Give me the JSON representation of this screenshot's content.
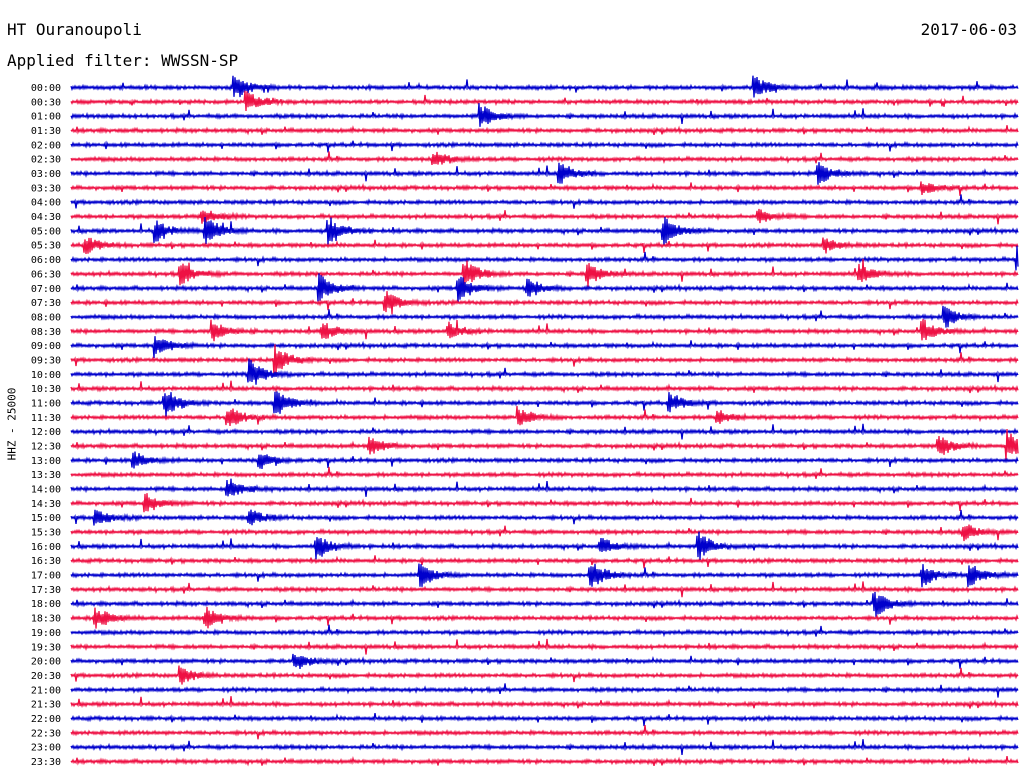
{
  "header": {
    "station": "HT Ouranoupoli",
    "date": "2017-06-03",
    "filter": "Applied filter: WWSSN-SP"
  },
  "chart_data": {
    "type": "line",
    "title": "HT Ouranoupoli",
    "ylabel": "HHZ - 25000",
    "row_labels": [
      "00:00",
      "00:30",
      "01:00",
      "01:30",
      "02:00",
      "02:30",
      "03:00",
      "03:30",
      "04:00",
      "04:30",
      "05:00",
      "05:30",
      "06:00",
      "06:30",
      "07:00",
      "07:30",
      "08:00",
      "08:30",
      "09:00",
      "09:30",
      "10:00",
      "10:30",
      "11:00",
      "11:30",
      "12:00",
      "12:30",
      "13:00",
      "13:30",
      "14:00",
      "14:30",
      "15:00",
      "15:30",
      "16:00",
      "16:30",
      "17:00",
      "17:30",
      "18:00",
      "18:30",
      "19:00",
      "19:30",
      "20:00",
      "20:30",
      "21:00",
      "21:30",
      "22:00",
      "22:30",
      "23:00",
      "23:30"
    ],
    "colors": [
      "#0000cc",
      "#ee1144"
    ],
    "trace_minutes": 30,
    "events": [
      {
        "row": 0,
        "minute": 5.2,
        "amplitude": 0.9
      },
      {
        "row": 0,
        "minute": 21.7,
        "amplitude": 0.8
      },
      {
        "row": 1,
        "minute": 5.6,
        "amplitude": 0.7
      },
      {
        "row": 2,
        "minute": 13.0,
        "amplitude": 0.8
      },
      {
        "row": 5,
        "minute": 11.5,
        "amplitude": 0.6
      },
      {
        "row": 6,
        "minute": 15.5,
        "amplitude": 0.8
      },
      {
        "row": 6,
        "minute": 23.7,
        "amplitude": 0.8
      },
      {
        "row": 7,
        "minute": 27.0,
        "amplitude": 0.5
      },
      {
        "row": 9,
        "minute": 4.2,
        "amplitude": 0.6
      },
      {
        "row": 9,
        "minute": 21.8,
        "amplitude": 0.5
      },
      {
        "row": 10,
        "minute": 2.7,
        "amplitude": 0.8
      },
      {
        "row": 10,
        "minute": 4.3,
        "amplitude": 1.0
      },
      {
        "row": 10,
        "minute": 8.2,
        "amplitude": 1.0
      },
      {
        "row": 10,
        "minute": 18.8,
        "amplitude": 1.0
      },
      {
        "row": 11,
        "minute": 0.5,
        "amplitude": 0.6
      },
      {
        "row": 11,
        "minute": 23.9,
        "amplitude": 0.5
      },
      {
        "row": 12,
        "minute": 30.0,
        "amplitude": 1.0
      },
      {
        "row": 13,
        "minute": 3.5,
        "amplitude": 0.8
      },
      {
        "row": 13,
        "minute": 12.5,
        "amplitude": 1.0
      },
      {
        "row": 13,
        "minute": 16.4,
        "amplitude": 0.8
      },
      {
        "row": 13,
        "minute": 25.0,
        "amplitude": 0.7
      },
      {
        "row": 14,
        "minute": 7.9,
        "amplitude": 1.0
      },
      {
        "row": 14,
        "minute": 12.3,
        "amplitude": 1.0
      },
      {
        "row": 14,
        "minute": 14.5,
        "amplitude": 0.7
      },
      {
        "row": 15,
        "minute": 10.0,
        "amplitude": 0.8
      },
      {
        "row": 16,
        "minute": 27.7,
        "amplitude": 0.8
      },
      {
        "row": 17,
        "minute": 4.5,
        "amplitude": 0.8
      },
      {
        "row": 17,
        "minute": 8.0,
        "amplitude": 0.6
      },
      {
        "row": 17,
        "minute": 12.0,
        "amplitude": 0.6
      },
      {
        "row": 17,
        "minute": 27.0,
        "amplitude": 0.8
      },
      {
        "row": 18,
        "minute": 2.7,
        "amplitude": 0.8
      },
      {
        "row": 19,
        "minute": 6.5,
        "amplitude": 1.0
      },
      {
        "row": 20,
        "minute": 5.7,
        "amplitude": 1.0
      },
      {
        "row": 22,
        "minute": 3.0,
        "amplitude": 1.0
      },
      {
        "row": 22,
        "minute": 6.5,
        "amplitude": 1.0
      },
      {
        "row": 22,
        "minute": 19.0,
        "amplitude": 0.7
      },
      {
        "row": 23,
        "minute": 5.0,
        "amplitude": 0.8
      },
      {
        "row": 23,
        "minute": 14.2,
        "amplitude": 0.7
      },
      {
        "row": 23,
        "minute": 20.5,
        "amplitude": 0.5
      },
      {
        "row": 25,
        "minute": 9.5,
        "amplitude": 0.6
      },
      {
        "row": 25,
        "minute": 27.5,
        "amplitude": 0.8
      },
      {
        "row": 25,
        "minute": 29.7,
        "amplitude": 1.0
      },
      {
        "row": 26,
        "minute": 2.0,
        "amplitude": 0.6
      },
      {
        "row": 26,
        "minute": 6.0,
        "amplitude": 0.6
      },
      {
        "row": 28,
        "minute": 5.0,
        "amplitude": 0.8
      },
      {
        "row": 29,
        "minute": 2.4,
        "amplitude": 0.7
      },
      {
        "row": 30,
        "minute": 0.8,
        "amplitude": 0.6
      },
      {
        "row": 30,
        "minute": 5.7,
        "amplitude": 0.6
      },
      {
        "row": 31,
        "minute": 28.3,
        "amplitude": 0.6
      },
      {
        "row": 32,
        "minute": 7.8,
        "amplitude": 0.9
      },
      {
        "row": 32,
        "minute": 16.8,
        "amplitude": 0.6
      },
      {
        "row": 32,
        "minute": 19.9,
        "amplitude": 1.0
      },
      {
        "row": 34,
        "minute": 11.1,
        "amplitude": 0.8
      },
      {
        "row": 34,
        "minute": 16.5,
        "amplitude": 1.0
      },
      {
        "row": 34,
        "minute": 27.0,
        "amplitude": 0.8
      },
      {
        "row": 34,
        "minute": 28.5,
        "amplitude": 0.8
      },
      {
        "row": 36,
        "minute": 25.5,
        "amplitude": 0.9
      },
      {
        "row": 37,
        "minute": 0.8,
        "amplitude": 0.8
      },
      {
        "row": 37,
        "minute": 4.3,
        "amplitude": 0.8
      },
      {
        "row": 40,
        "minute": 7.1,
        "amplitude": 0.7
      },
      {
        "row": 41,
        "minute": 3.5,
        "amplitude": 0.6
      }
    ]
  }
}
